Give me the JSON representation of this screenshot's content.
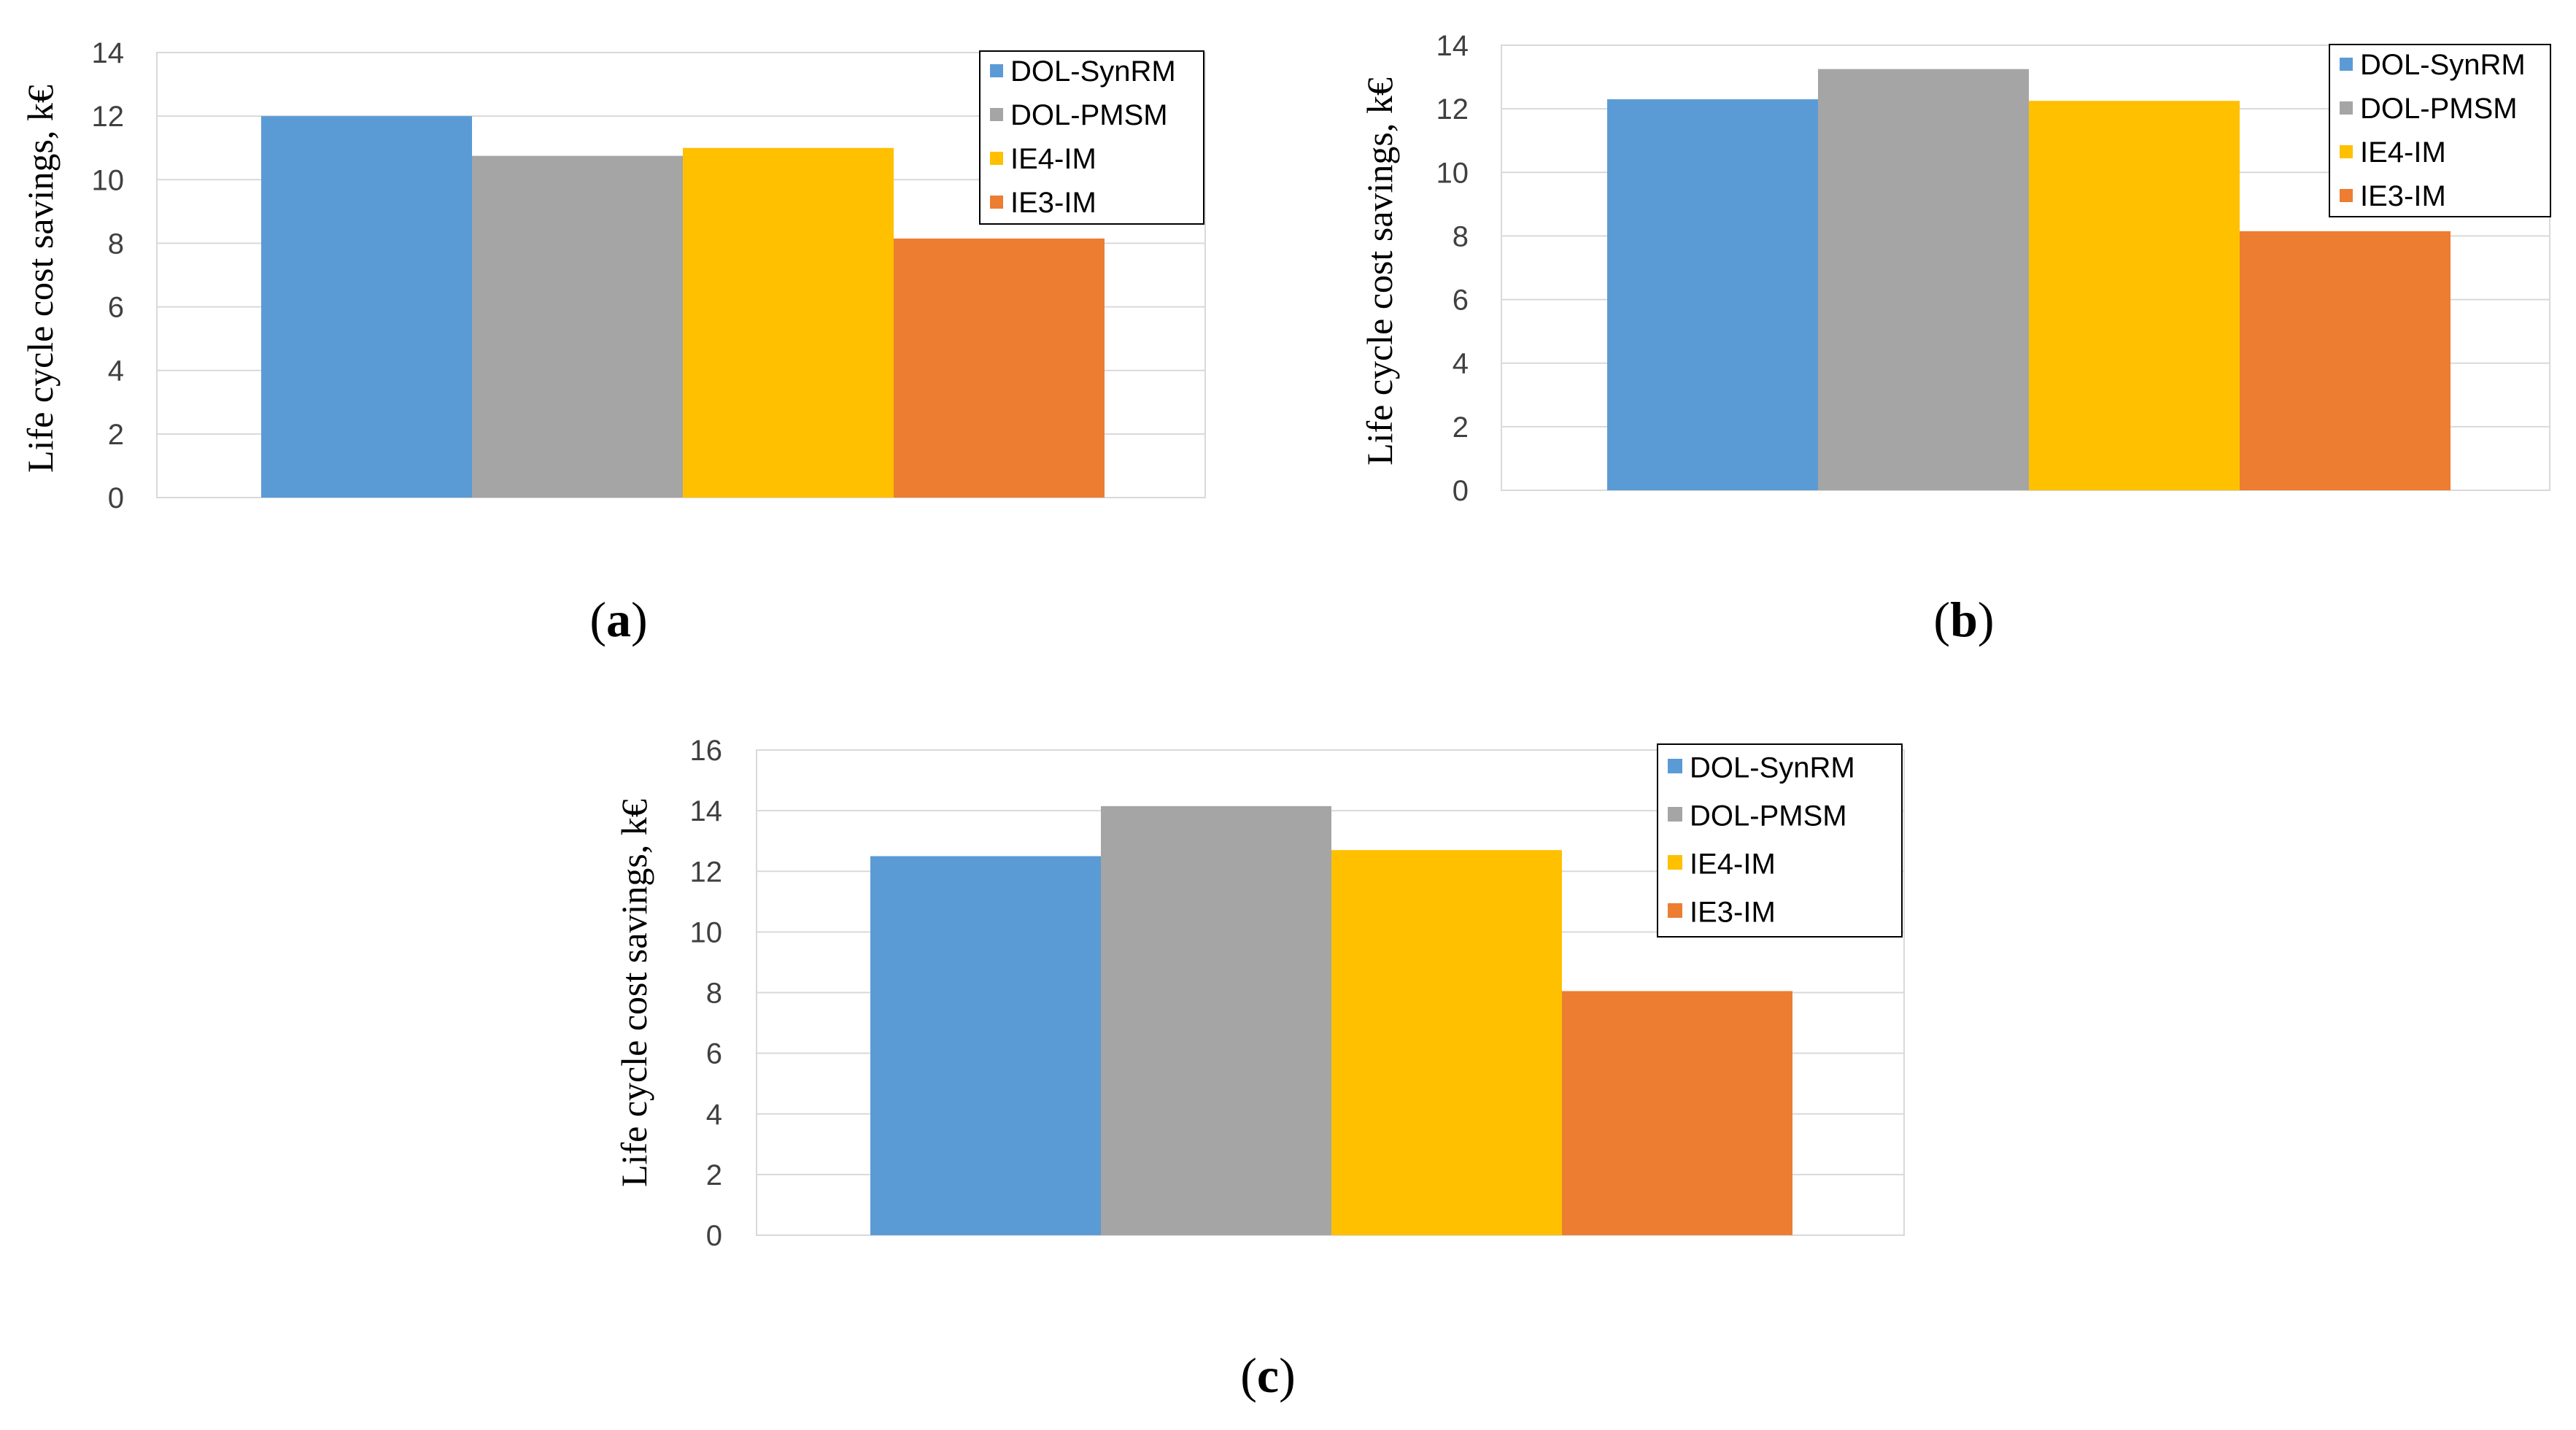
{
  "legend_colors": {
    "DOL-SynRM": "#5B9BD5",
    "DOL-PMSM": "#A5A5A5",
    "IE4-IM": "#FFC000",
    "IE3-IM": "#ED7D31"
  },
  "chart_data": [
    {
      "type": "bar",
      "panel": "a",
      "caption_open": "(",
      "caption_letter": "a",
      "caption_close": ")",
      "ylabel": "Life cycle cost savings, k€",
      "ylim": [
        0,
        14
      ],
      "yticks": [
        0,
        2,
        4,
        6,
        8,
        10,
        12,
        14
      ],
      "grid": true,
      "legend_position": "top-right",
      "series": [
        {
          "name": "DOL-SynRM",
          "values": [
            12.0
          ]
        },
        {
          "name": "DOL-PMSM",
          "values": [
            10.75
          ]
        },
        {
          "name": "IE4-IM",
          "values": [
            11.0
          ]
        },
        {
          "name": "IE3-IM",
          "values": [
            8.15
          ]
        }
      ]
    },
    {
      "type": "bar",
      "panel": "b",
      "caption_open": "(",
      "caption_letter": "b",
      "caption_close": ")",
      "ylabel": "Life cycle cost savings, k€",
      "ylim": [
        0,
        14
      ],
      "yticks": [
        0,
        2,
        4,
        6,
        8,
        10,
        12,
        14
      ],
      "grid": true,
      "legend_position": "top-right",
      "series": [
        {
          "name": "DOL-SynRM",
          "values": [
            12.3
          ]
        },
        {
          "name": "DOL-PMSM",
          "values": [
            13.25
          ]
        },
        {
          "name": "IE4-IM",
          "values": [
            12.25
          ]
        },
        {
          "name": "IE3-IM",
          "values": [
            8.15
          ]
        }
      ]
    },
    {
      "type": "bar",
      "panel": "c",
      "caption_open": "(",
      "caption_letter": "c",
      "caption_close": ")",
      "ylabel": "Life cycle cost savings, k€",
      "ylim": [
        0,
        16
      ],
      "yticks": [
        0,
        2,
        4,
        6,
        8,
        10,
        12,
        14,
        16
      ],
      "grid": true,
      "legend_position": "top-right",
      "series": [
        {
          "name": "DOL-SynRM",
          "values": [
            12.5
          ]
        },
        {
          "name": "DOL-PMSM",
          "values": [
            14.15
          ]
        },
        {
          "name": "IE4-IM",
          "values": [
            12.7
          ]
        },
        {
          "name": "IE3-IM",
          "values": [
            8.05
          ]
        }
      ]
    }
  ]
}
